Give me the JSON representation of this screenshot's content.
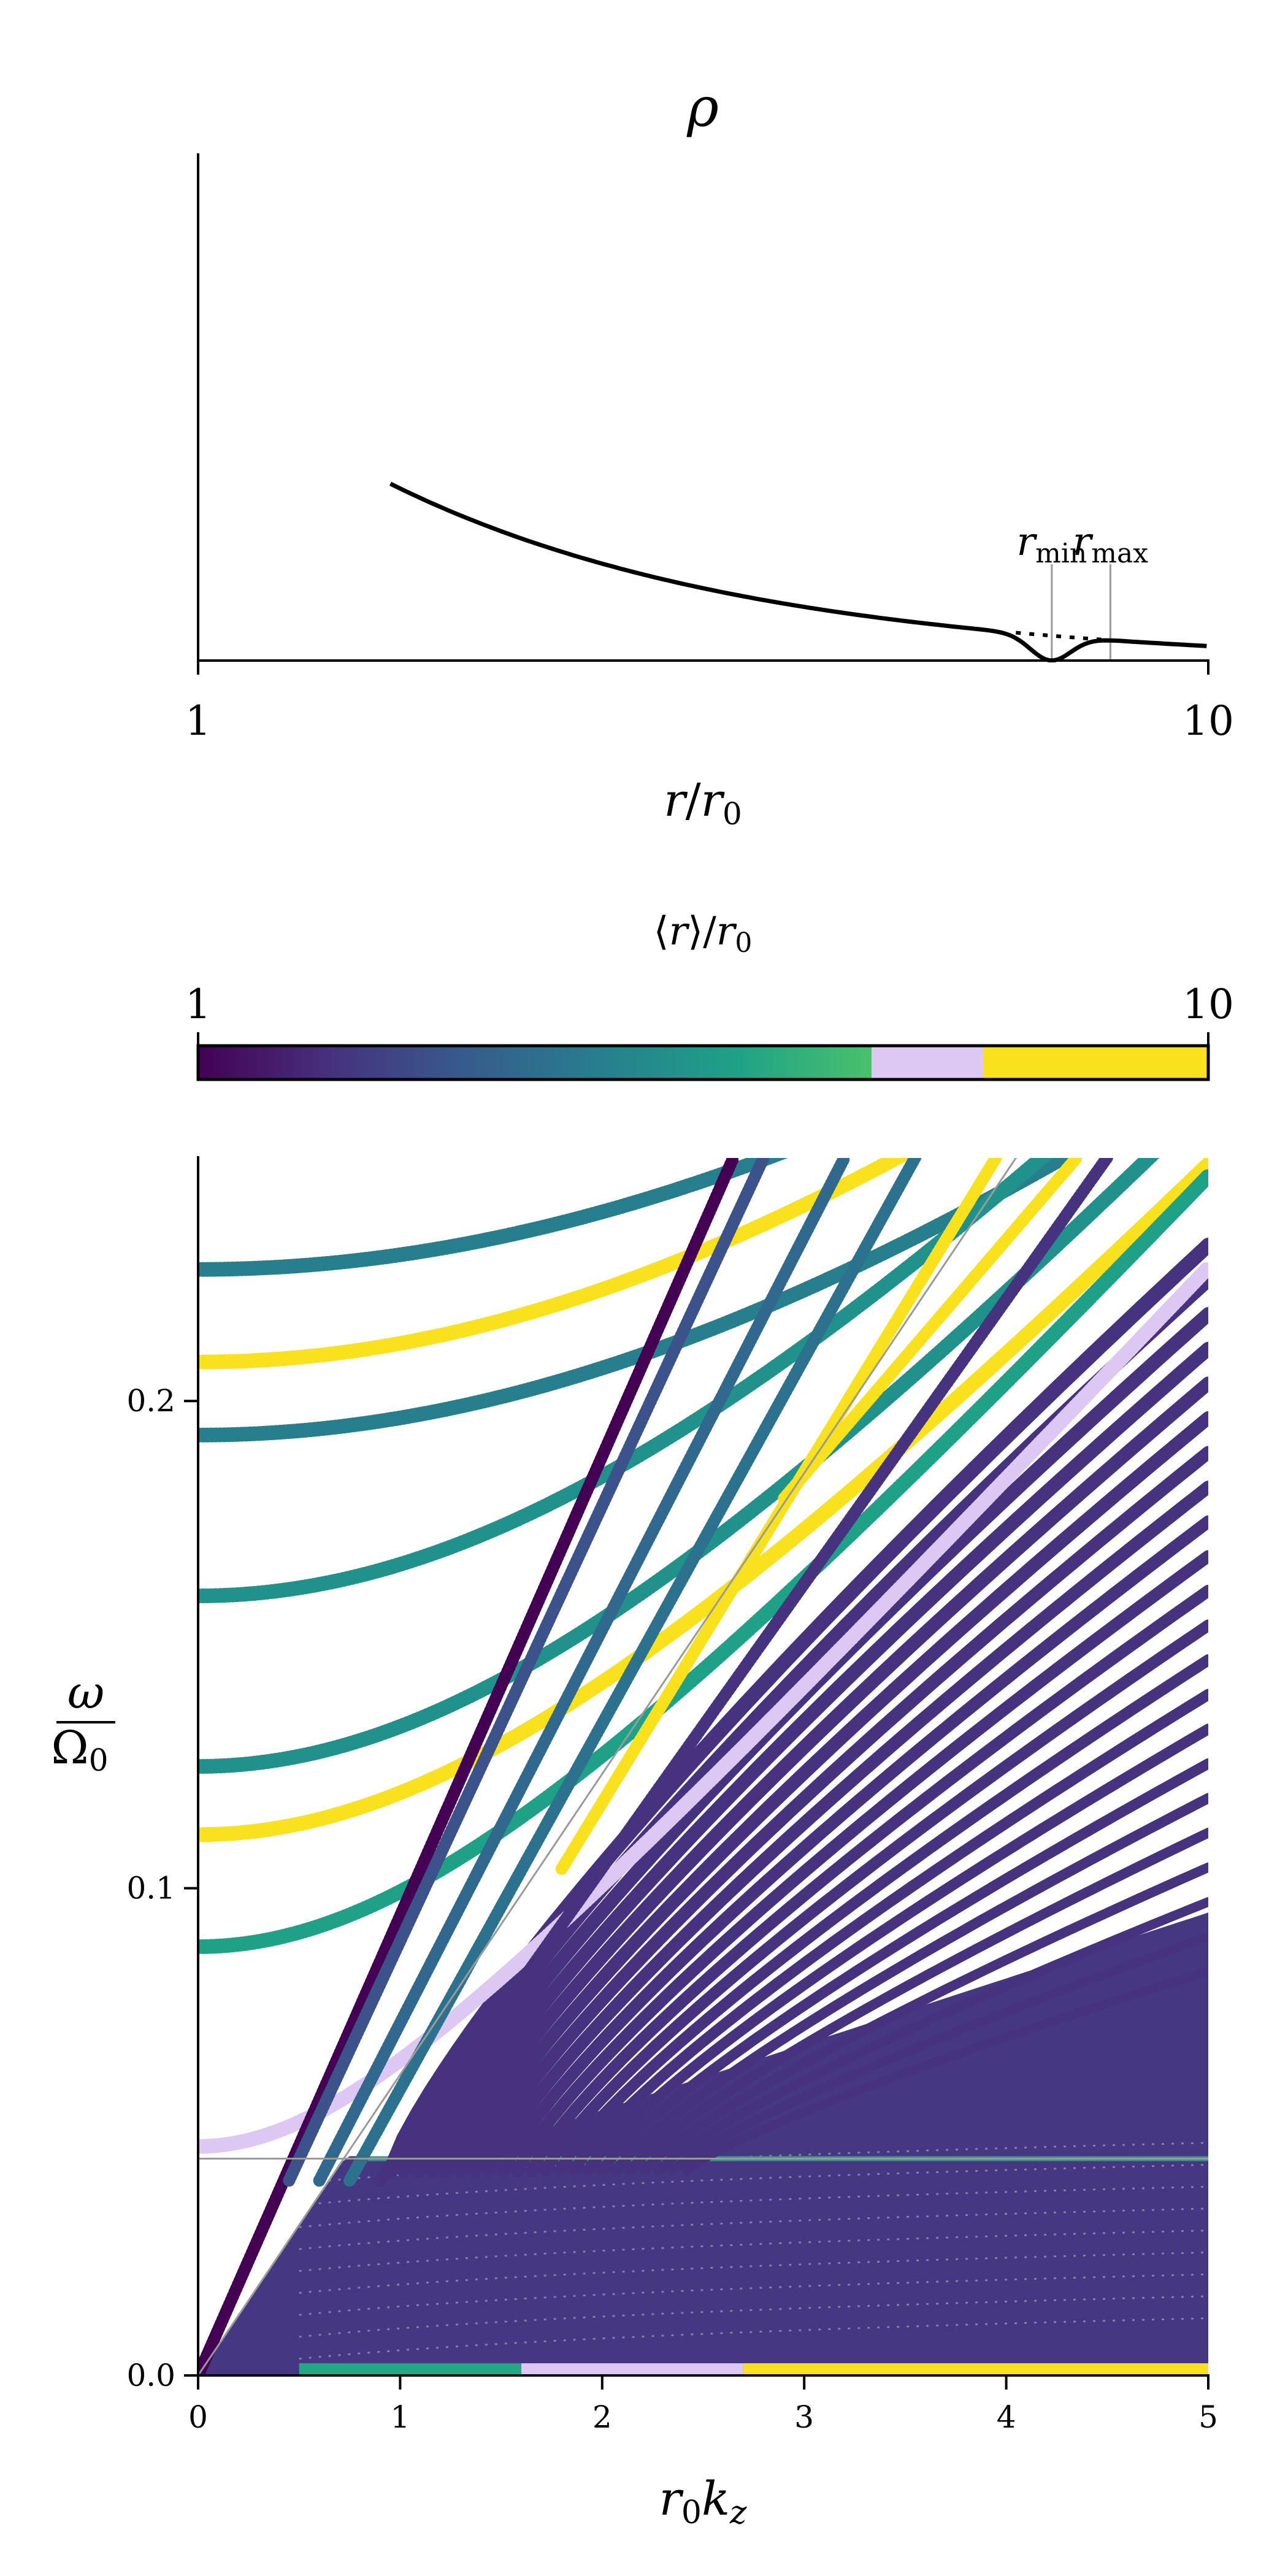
{
  "chart_data": [
    {
      "type": "line",
      "title": "ρ",
      "xlabel": "r/r0",
      "xlabel_parts": {
        "var": "r",
        "sub": "0"
      },
      "x_scale": "log",
      "xlim": [
        1,
        10
      ],
      "x_ticks": [
        "1",
        "10"
      ],
      "y_ticks": [],
      "grid": false,
      "series": [
        {
          "style": "solid",
          "x": [
            1.55,
            1.7,
            1.85,
            2.0,
            2.2,
            2.5,
            2.8,
            3.2,
            3.6,
            4.0,
            4.5,
            5.0,
            5.5,
            6.0,
            6.5,
            7.0,
            7.5,
            8.0,
            9.0,
            10.0
          ],
          "y": [
            1.0,
            0.79,
            0.64,
            0.54,
            0.44,
            0.35,
            0.28,
            0.23,
            0.19,
            0.165,
            0.145,
            0.13,
            0.118,
            0.11,
            0.075,
            0.0,
            0.05,
            0.08,
            0.07,
            0.06
          ]
        },
        {
          "style": "dotted",
          "x": [
            6.5,
            7.0,
            7.5,
            8.0
          ],
          "y": [
            0.108,
            0.1,
            0.093,
            0.087
          ]
        }
      ],
      "markers": [
        {
          "label": "r",
          "sub": "min",
          "x": 7.0
        },
        {
          "label": "r",
          "sub": "max",
          "x": 8.0
        }
      ]
    },
    {
      "type": "colorbar",
      "label": "⟨r⟩/r0",
      "label_parts": {
        "open": "⟨",
        "var": "r",
        "close": "⟩/",
        "var2": "r",
        "sub": "0"
      },
      "ticks": [
        "1",
        "10"
      ],
      "range": [
        1,
        10
      ],
      "colormap": "viridis",
      "segments": [
        {
          "from": 1,
          "to": 7,
          "colors": [
            "#440154",
            "#46327e",
            "#365c8d",
            "#277f8e",
            "#1fa187",
            "#4ac16d"
          ]
        },
        {
          "from": 7,
          "to": 8,
          "colors": [
            "#dcc8f2"
          ]
        },
        {
          "from": 8,
          "to": 10,
          "colors": [
            "#f9e11e"
          ]
        }
      ]
    },
    {
      "type": "scatter",
      "xlabel": "r0kz",
      "xlabel_parts": {
        "var": "r",
        "sub": "0",
        "var2": "k",
        "sub2": "z"
      },
      "ylabel": "ω/Ω0",
      "ylabel_parts": {
        "num": "ω",
        "den": "Ω",
        "sub": "0"
      },
      "xlim": [
        0,
        5
      ],
      "ylim": [
        0,
        0.25
      ],
      "x_ticks": [
        "0",
        "1",
        "2",
        "3",
        "4",
        "5"
      ],
      "y_ticks": [
        "0.0",
        "0.1",
        "0.2"
      ],
      "y_tick_values": [
        0.0,
        0.1,
        0.2
      ],
      "grid": false,
      "reference_lines": [
        {
          "kind": "horizontal",
          "y": 0.0445,
          "color": "#9a9a9a"
        },
        {
          "kind": "diagonal",
          "x": [
            0,
            4.05
          ],
          "y": [
            0,
            0.25
          ],
          "color": "#9a9a9a"
        }
      ],
      "series": [
        {
          "kind": "hyperbola",
          "color": "#277f8e",
          "omega0": 0.227,
          "slope": 0.05
        },
        {
          "kind": "hyperbola",
          "color": "#f9e11e",
          "omega0": 0.208,
          "slope": 0.054
        },
        {
          "kind": "hyperbola",
          "color": "#277f8e",
          "omega0": 0.193,
          "slope": 0.05
        },
        {
          "kind": "hyperbola",
          "color": "#21918c",
          "omega0": 0.16,
          "slope": 0.062
        },
        {
          "kind": "hyperbola",
          "color": "#21918c",
          "omega0": 0.125,
          "slope": 0.062
        },
        {
          "kind": "hyperbola",
          "color": "#f9e11e",
          "omega0": 0.111,
          "slope": 0.06
        },
        {
          "kind": "hyperbola",
          "color": "#1fa187",
          "omega0": 0.088,
          "slope": 0.062
        },
        {
          "kind": "hyperbola",
          "color": "#dcc8f2",
          "omega0": 0.047,
          "slope": 0.06
        },
        {
          "kind": "line",
          "color": "#440154",
          "x": [
            0,
            2.65
          ],
          "y": [
            0,
            0.25
          ]
        },
        {
          "kind": "line",
          "color": "#3b528b",
          "x": [
            0.45,
            2.8
          ],
          "y": [
            0.04,
            0.25
          ]
        },
        {
          "kind": "line",
          "color": "#31688e",
          "x": [
            0.6,
            3.2
          ],
          "y": [
            0.04,
            0.25
          ]
        },
        {
          "kind": "line",
          "color": "#2c728e",
          "x": [
            0.75,
            3.55
          ],
          "y": [
            0.04,
            0.25
          ]
        },
        {
          "kind": "line",
          "color": "#f9e11e",
          "x": [
            1.8,
            3.95
          ],
          "y": [
            0.104,
            0.25
          ]
        },
        {
          "kind": "line",
          "color": "#f9e11e",
          "x": [
            2.9,
            4.35
          ],
          "y": [
            0.18,
            0.25
          ]
        },
        {
          "kind": "line",
          "color": "#46327e",
          "x": [
            0.9,
            4.5
          ],
          "y": [
            0.04,
            0.25
          ]
        }
      ],
      "fan_curves": {
        "color": "#46327e",
        "count": 22,
        "end_y_top": 0.232,
        "end_y_bottom": 0.083
      },
      "continuum": {
        "color": "#453781",
        "y_range": [
          0,
          0.045
        ],
        "upper_fill_top": 0.095
      },
      "bottom_band": [
        {
          "from": 0.5,
          "to": 1.6,
          "color": "#22a884"
        },
        {
          "from": 1.6,
          "to": 2.7,
          "color": "#dcc8f2"
        },
        {
          "from": 2.7,
          "to": 5.0,
          "color": "#f9e11e"
        }
      ]
    }
  ]
}
